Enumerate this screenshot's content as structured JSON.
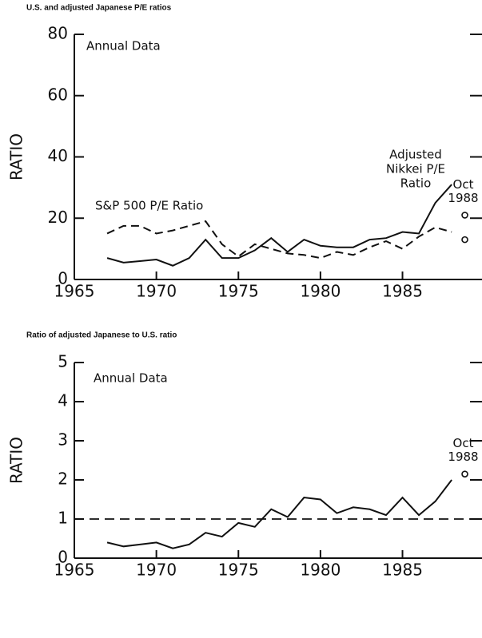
{
  "chart_data": [
    {
      "type": "line",
      "title": "U.S. and adjusted Japanese P/E ratios",
      "y_label": "RATIO",
      "annotations": {
        "annual": "Annual Data",
        "sp": "S&P 500 P/E Ratio",
        "nikkei": [
          "Adjusted",
          "Nikkei P/E",
          "Ratio"
        ]
      },
      "x": [
        1967,
        1968,
        1969,
        1970,
        1971,
        1972,
        1973,
        1974,
        1975,
        1976,
        1977,
        1978,
        1979,
        1980,
        1981,
        1982,
        1983,
        1984,
        1985,
        1986,
        1987,
        1988
      ],
      "series": [
        {
          "color": "#111111",
          "dash": false,
          "values": [
            7,
            5.5,
            6,
            6.5,
            4.5,
            7,
            13,
            7,
            7,
            9.5,
            13.5,
            9,
            13,
            11,
            10.5,
            10.5,
            13,
            13.5,
            15.5,
            15,
            25,
            31
          ]
        },
        {
          "color": "#111111",
          "dash": true,
          "values": [
            15,
            17.5,
            17.5,
            15,
            16,
            17.5,
            19,
            11.5,
            7.5,
            11.5,
            10,
            8.5,
            8,
            7,
            9,
            8,
            10.5,
            12.5,
            10,
            14,
            17,
            15.5
          ]
        }
      ],
      "oct_1988": {
        "label": [
          "Oct",
          "1988"
        ],
        "x": 1988.8,
        "values": [
          21,
          13
        ]
      },
      "xlim": [
        1965,
        1989.7
      ],
      "xticks": [
        1965,
        1970,
        1975,
        1980,
        1985
      ],
      "ylim": [
        0,
        80
      ],
      "yticks": [
        0,
        20,
        40,
        60,
        80
      ]
    },
    {
      "type": "line",
      "title": "Ratio of adjusted Japanese to U.S. ratio",
      "y_label": "RATIO",
      "annotations": {
        "annual": "Annual Data"
      },
      "x": [
        1967,
        1968,
        1969,
        1970,
        1971,
        1972,
        1973,
        1974,
        1975,
        1976,
        1977,
        1978,
        1979,
        1980,
        1981,
        1982,
        1983,
        1984,
        1985,
        1986,
        1987,
        1988
      ],
      "series": [
        {
          "color": "#111111",
          "dash": false,
          "values": [
            0.4,
            0.3,
            0.35,
            0.4,
            0.25,
            0.35,
            0.65,
            0.55,
            0.9,
            0.8,
            1.25,
            1.05,
            1.55,
            1.5,
            1.15,
            1.3,
            1.25,
            1.1,
            1.55,
            1.1,
            1.45,
            2.0
          ]
        }
      ],
      "reference_line": 1,
      "oct_1988": {
        "label": [
          "Oct",
          "1988"
        ],
        "x": 1988.8,
        "values": [
          2.15
        ]
      },
      "xlim": [
        1965,
        1989.7
      ],
      "xticks": [
        1965,
        1970,
        1975,
        1980,
        1985
      ],
      "ylim": [
        0,
        5
      ],
      "yticks": [
        0,
        1,
        2,
        3,
        4,
        5
      ]
    }
  ]
}
